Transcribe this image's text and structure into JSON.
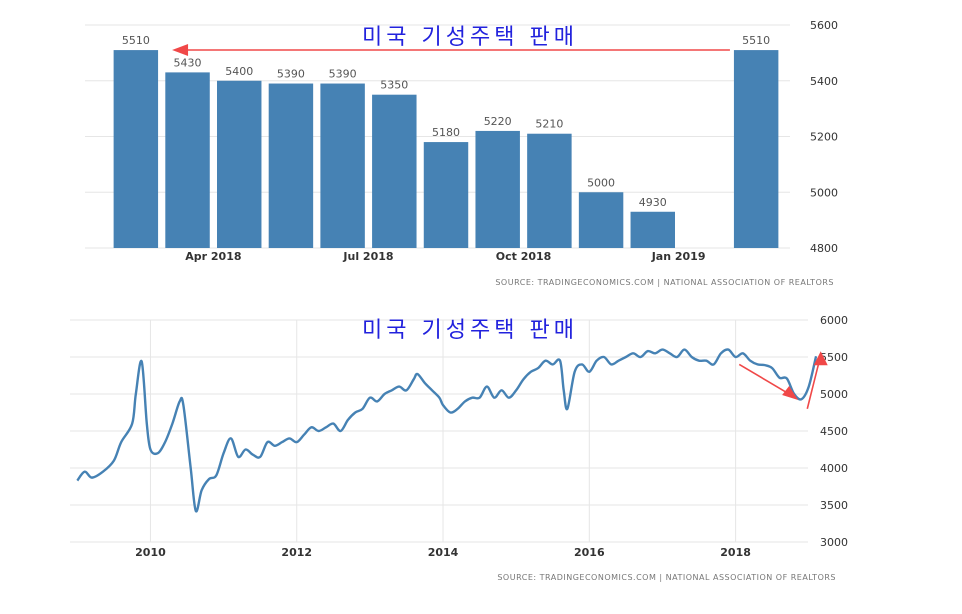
{
  "colors": {
    "bar": "#4682b4",
    "line": "#4682b4",
    "arrow": "#f04848",
    "title": "#2222dd",
    "grid": "#e6e6e6"
  },
  "chart_data": [
    {
      "type": "bar",
      "title": "미국 기성주택 판매",
      "categories": [
        "Feb 2018",
        "Mar 2018",
        "Apr 2018",
        "May 2018",
        "Jun 2018",
        "Jul 2018",
        "Aug 2018",
        "Sep 2018",
        "Oct 2018",
        "Nov 2018",
        "Dec 2018",
        "Jan 2019",
        "Feb 2019"
      ],
      "values": [
        5510,
        5430,
        5400,
        5390,
        5390,
        5350,
        5180,
        5220,
        5210,
        5000,
        4930,
        null,
        5510
      ],
      "x_tick_labels": [
        {
          "label": "Apr 2018",
          "after_index": 1
        },
        {
          "label": "Jul 2018",
          "after_index": 4
        },
        {
          "label": "Oct 2018",
          "after_index": 7
        },
        {
          "label": "Jan 2019",
          "after_index": 10
        }
      ],
      "y_ticks": [
        4800,
        5000,
        5200,
        5400,
        5600
      ],
      "ylim": [
        4800,
        5600
      ],
      "source": "SOURCE: TRADINGECONOMICS.COM  |  NATIONAL ASSOCIATION OF REALTORS",
      "annotation": "arrow from Feb 2019 bar pointing left to Feb 2018 bar"
    },
    {
      "type": "line",
      "title": "미국 기성주택 판매",
      "x_ticks": [
        2010,
        2012,
        2014,
        2016,
        2018
      ],
      "y_ticks": [
        3000,
        3500,
        4000,
        4500,
        5000,
        5500,
        6000
      ],
      "xlim": [
        2008.9,
        2019.4
      ],
      "ylim": [
        3000,
        6000
      ],
      "points": [
        [
          2009.0,
          3830
        ],
        [
          2009.1,
          3950
        ],
        [
          2009.2,
          3870
        ],
        [
          2009.35,
          3950
        ],
        [
          2009.5,
          4100
        ],
        [
          2009.6,
          4350
        ],
        [
          2009.75,
          4600
        ],
        [
          2009.8,
          5000
        ],
        [
          2009.88,
          5440
        ],
        [
          2009.95,
          4600
        ],
        [
          2010.0,
          4250
        ],
        [
          2010.1,
          4200
        ],
        [
          2010.2,
          4350
        ],
        [
          2010.3,
          4600
        ],
        [
          2010.4,
          4900
        ],
        [
          2010.45,
          4850
        ],
        [
          2010.55,
          4000
        ],
        [
          2010.62,
          3420
        ],
        [
          2010.7,
          3700
        ],
        [
          2010.8,
          3850
        ],
        [
          2010.9,
          3900
        ],
        [
          2011.0,
          4200
        ],
        [
          2011.1,
          4400
        ],
        [
          2011.2,
          4150
        ],
        [
          2011.3,
          4250
        ],
        [
          2011.4,
          4180
        ],
        [
          2011.5,
          4150
        ],
        [
          2011.6,
          4350
        ],
        [
          2011.7,
          4300
        ],
        [
          2011.8,
          4350
        ],
        [
          2011.9,
          4400
        ],
        [
          2012.0,
          4350
        ],
        [
          2012.1,
          4450
        ],
        [
          2012.2,
          4550
        ],
        [
          2012.3,
          4500
        ],
        [
          2012.4,
          4550
        ],
        [
          2012.5,
          4600
        ],
        [
          2012.6,
          4500
        ],
        [
          2012.7,
          4650
        ],
        [
          2012.8,
          4750
        ],
        [
          2012.9,
          4800
        ],
        [
          2013.0,
          4950
        ],
        [
          2013.1,
          4900
        ],
        [
          2013.2,
          5000
        ],
        [
          2013.3,
          5050
        ],
        [
          2013.4,
          5100
        ],
        [
          2013.5,
          5050
        ],
        [
          2013.6,
          5200
        ],
        [
          2013.65,
          5270
        ],
        [
          2013.75,
          5150
        ],
        [
          2013.85,
          5050
        ],
        [
          2013.95,
          4950
        ],
        [
          2014.0,
          4850
        ],
        [
          2014.1,
          4750
        ],
        [
          2014.2,
          4800
        ],
        [
          2014.3,
          4900
        ],
        [
          2014.4,
          4950
        ],
        [
          2014.5,
          4950
        ],
        [
          2014.6,
          5100
        ],
        [
          2014.7,
          4950
        ],
        [
          2014.8,
          5050
        ],
        [
          2014.9,
          4950
        ],
        [
          2015.0,
          5050
        ],
        [
          2015.1,
          5200
        ],
        [
          2015.2,
          5300
        ],
        [
          2015.3,
          5350
        ],
        [
          2015.4,
          5450
        ],
        [
          2015.5,
          5400
        ],
        [
          2015.6,
          5450
        ],
        [
          2015.65,
          5050
        ],
        [
          2015.7,
          4800
        ],
        [
          2015.8,
          5300
        ],
        [
          2015.9,
          5400
        ],
        [
          2016.0,
          5300
        ],
        [
          2016.1,
          5450
        ],
        [
          2016.2,
          5500
        ],
        [
          2016.3,
          5400
        ],
        [
          2016.4,
          5450
        ],
        [
          2016.5,
          5500
        ],
        [
          2016.6,
          5550
        ],
        [
          2016.7,
          5500
        ],
        [
          2016.8,
          5580
        ],
        [
          2016.9,
          5550
        ],
        [
          2017.0,
          5600
        ],
        [
          2017.1,
          5550
        ],
        [
          2017.2,
          5500
        ],
        [
          2017.3,
          5600
        ],
        [
          2017.4,
          5500
        ],
        [
          2017.5,
          5450
        ],
        [
          2017.6,
          5450
        ],
        [
          2017.7,
          5400
        ],
        [
          2017.8,
          5550
        ],
        [
          2017.9,
          5600
        ],
        [
          2018.0,
          5500
        ],
        [
          2018.1,
          5550
        ],
        [
          2018.2,
          5450
        ],
        [
          2018.3,
          5400
        ],
        [
          2018.4,
          5390
        ],
        [
          2018.5,
          5350
        ],
        [
          2018.6,
          5220
        ],
        [
          2018.7,
          5210
        ],
        [
          2018.8,
          5000
        ],
        [
          2018.9,
          4930
        ],
        [
          2019.0,
          5100
        ],
        [
          2019.1,
          5510
        ]
      ],
      "source": "SOURCE: TRADINGECONOMICS.COM  |  NATIONAL ASSOCIATION OF REALTORS",
      "annotation": "down arrow then up arrow near early 2019"
    }
  ]
}
